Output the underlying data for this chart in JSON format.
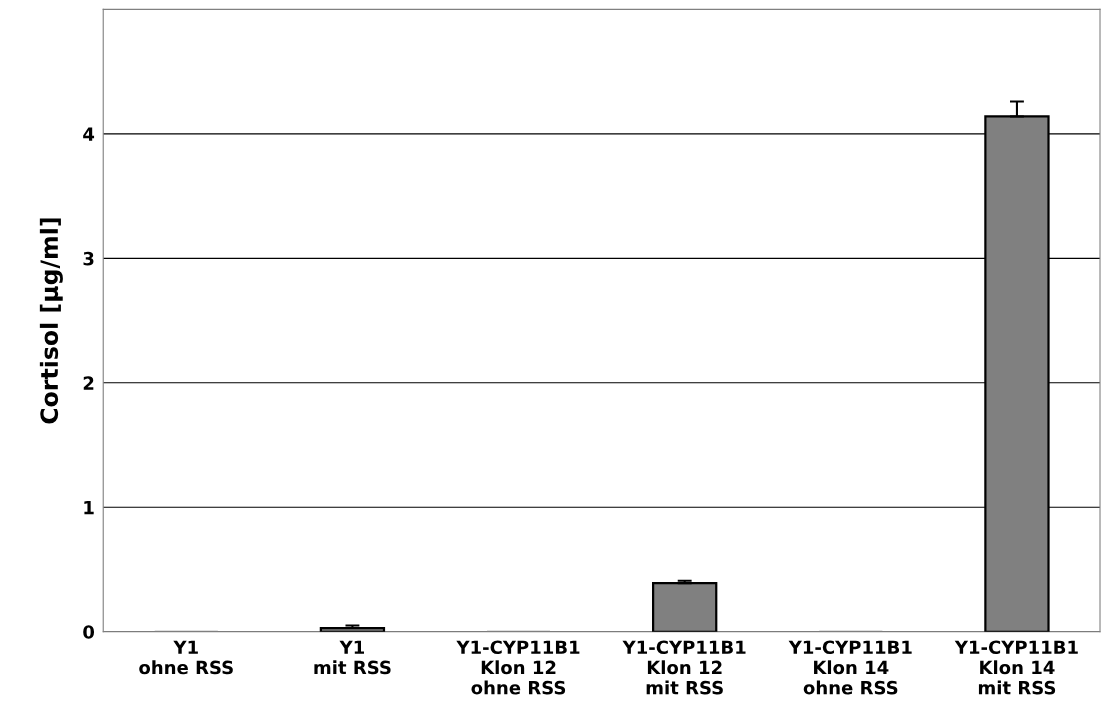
{
  "chart_data": {
    "type": "bar",
    "ylabel": "Cortisol [µg/ml]",
    "categories": [
      "Y1\nohne RSS",
      "Y1\nmit RSS",
      "Y1-CYP11B1\nKlon 12\nohne RSS",
      "Y1-CYP11B1\nKlon 12\nmit RSS",
      "Y1-CYP11B1\nKlon 14\nohne RSS",
      "Y1-CYP11B1\nKlon 14\nmit RSS"
    ],
    "values": [
      0,
      0.03,
      0,
      0.39,
      0,
      4.14
    ],
    "errors": [
      null,
      0.02,
      null,
      0.02,
      null,
      0.12
    ],
    "color": "#808080",
    "ylim": [
      0,
      5
    ],
    "yticks": [
      0,
      1,
      2,
      3,
      4
    ],
    "grid": "y"
  }
}
